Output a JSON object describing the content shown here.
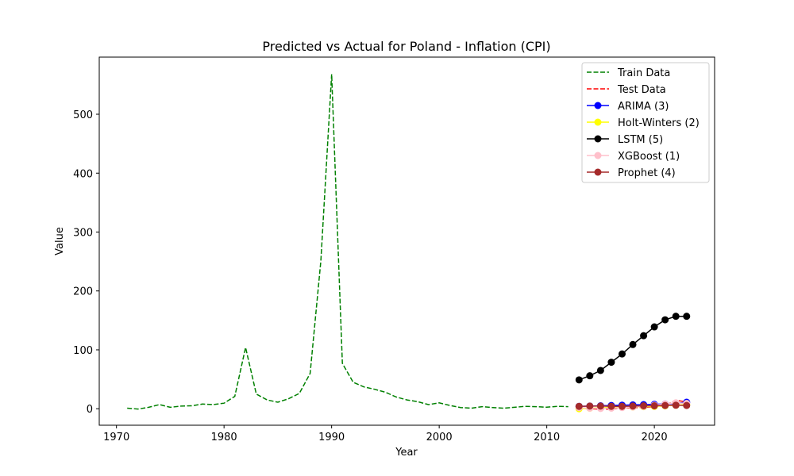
{
  "chart_data": {
    "type": "line",
    "title": "Predicted vs Actual for Poland - Inflation (CPI)",
    "xlabel": "Year",
    "ylabel": "Value",
    "xlim": [
      1968.4,
      2025.6
    ],
    "ylim": [
      -28,
      597
    ],
    "xticks": [
      1970,
      1980,
      1990,
      2000,
      2010,
      2020
    ],
    "yticks": [
      0,
      100,
      200,
      300,
      400,
      500
    ],
    "legend_position": "upper-right",
    "grid": false,
    "series": [
      {
        "name": "Train Data",
        "color": "#008000",
        "style": "dashed",
        "marker": "none",
        "x": [
          1971,
          1972,
          1973,
          1974,
          1975,
          1976,
          1977,
          1978,
          1979,
          1980,
          1981,
          1982,
          1983,
          1984,
          1985,
          1986,
          1987,
          1988,
          1989,
          1990,
          1991,
          1992,
          1993,
          1994,
          1995,
          1996,
          1997,
          1998,
          1999,
          2000,
          2001,
          2002,
          2003,
          2004,
          2005,
          2006,
          2007,
          2008,
          2009,
          2010,
          2011,
          2012
        ],
        "y": [
          1,
          -0.5,
          2.5,
          7,
          2.5,
          4.5,
          5,
          8,
          7,
          9.5,
          21,
          104,
          25,
          15,
          11,
          17,
          26,
          60,
          251,
          568,
          77,
          45,
          37,
          33,
          28,
          20,
          15,
          12,
          7,
          10,
          5.5,
          2,
          1,
          3.5,
          2,
          1,
          2.5,
          4,
          3.5,
          2.6,
          4,
          3.5
        ]
      },
      {
        "name": "Test Data",
        "color": "#ff0000",
        "style": "dashed",
        "marker": "none",
        "x": [
          2013,
          2014,
          2015,
          2016,
          2017,
          2018,
          2019,
          2020,
          2021,
          2022,
          2023
        ],
        "y": [
          0.9,
          0,
          -0.9,
          -0.6,
          2,
          1.6,
          2.3,
          3.4,
          5.1,
          14.4,
          11.4
        ]
      },
      {
        "name": "ARIMA (3)",
        "color": "#0000ff",
        "style": "solid",
        "marker": "circle",
        "x": [
          2013,
          2014,
          2015,
          2016,
          2017,
          2018,
          2019,
          2020,
          2021,
          2022,
          2023
        ],
        "y": [
          4,
          4.5,
          5,
          5.5,
          6,
          6.5,
          7,
          7.5,
          8,
          9,
          11
        ]
      },
      {
        "name": "Holt-Winters (2)",
        "color": "#ffff00",
        "style": "solid",
        "marker": "circle",
        "x": [
          2013,
          2014,
          2015,
          2016,
          2017,
          2018,
          2019,
          2020,
          2021,
          2022,
          2023
        ],
        "y": [
          0,
          1,
          1.5,
          2,
          2.5,
          3,
          3.5,
          4,
          5,
          6,
          7
        ]
      },
      {
        "name": "LSTM (5)",
        "color": "#000000",
        "style": "solid",
        "marker": "circle",
        "x": [
          2013,
          2014,
          2015,
          2016,
          2017,
          2018,
          2019,
          2020,
          2021,
          2022,
          2023
        ],
        "y": [
          49,
          56,
          65,
          79,
          93,
          109,
          124,
          139,
          151,
          157,
          157
        ]
      },
      {
        "name": "XGBoost (1)",
        "color": "#ffc0cb",
        "style": "solid",
        "marker": "circle",
        "x": [
          2013,
          2014,
          2015,
          2016,
          2017,
          2018,
          2019,
          2020,
          2021,
          2022,
          2023
        ],
        "y": [
          2,
          1,
          0.5,
          1,
          2,
          3,
          4,
          6,
          8,
          10,
          9
        ]
      },
      {
        "name": "Prophet (4)",
        "color": "#a52a2a",
        "style": "solid",
        "marker": "circle",
        "x": [
          2013,
          2014,
          2015,
          2016,
          2017,
          2018,
          2019,
          2020,
          2021,
          2022,
          2023
        ],
        "y": [
          4,
          4.5,
          4.5,
          4,
          4,
          4.5,
          5,
          5,
          5.5,
          6,
          5.5
        ]
      }
    ]
  }
}
